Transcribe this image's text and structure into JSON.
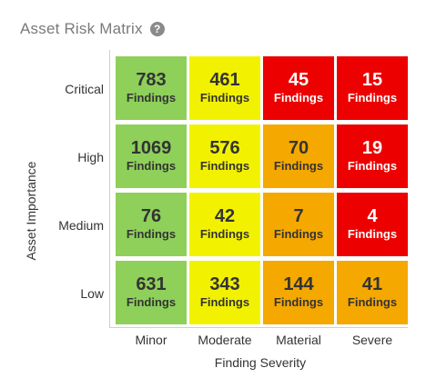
{
  "title": "Asset Risk Matrix",
  "help_icon": "question-circle-icon",
  "y_axis_label": "Asset Importance",
  "x_axis_label": "Finding Severity",
  "rows": [
    "Critical",
    "High",
    "Medium",
    "Low"
  ],
  "columns": [
    "Minor",
    "Moderate",
    "Material",
    "Severe"
  ],
  "cell_unit": "Findings",
  "colors": {
    "green": "#8ed05a",
    "yellow": "#f2f200",
    "orange": "#f5a800",
    "red": "#ec0000"
  },
  "cells": [
    [
      {
        "count": "783",
        "color": "green"
      },
      {
        "count": "461",
        "color": "yellow"
      },
      {
        "count": "45",
        "color": "red"
      },
      {
        "count": "15",
        "color": "red"
      }
    ],
    [
      {
        "count": "1069",
        "color": "green"
      },
      {
        "count": "576",
        "color": "yellow"
      },
      {
        "count": "70",
        "color": "orange"
      },
      {
        "count": "19",
        "color": "red"
      }
    ],
    [
      {
        "count": "76",
        "color": "green"
      },
      {
        "count": "42",
        "color": "yellow"
      },
      {
        "count": "7",
        "color": "orange"
      },
      {
        "count": "4",
        "color": "red"
      }
    ],
    [
      {
        "count": "631",
        "color": "green"
      },
      {
        "count": "343",
        "color": "yellow"
      },
      {
        "count": "144",
        "color": "orange"
      },
      {
        "count": "41",
        "color": "orange"
      }
    ]
  ]
}
